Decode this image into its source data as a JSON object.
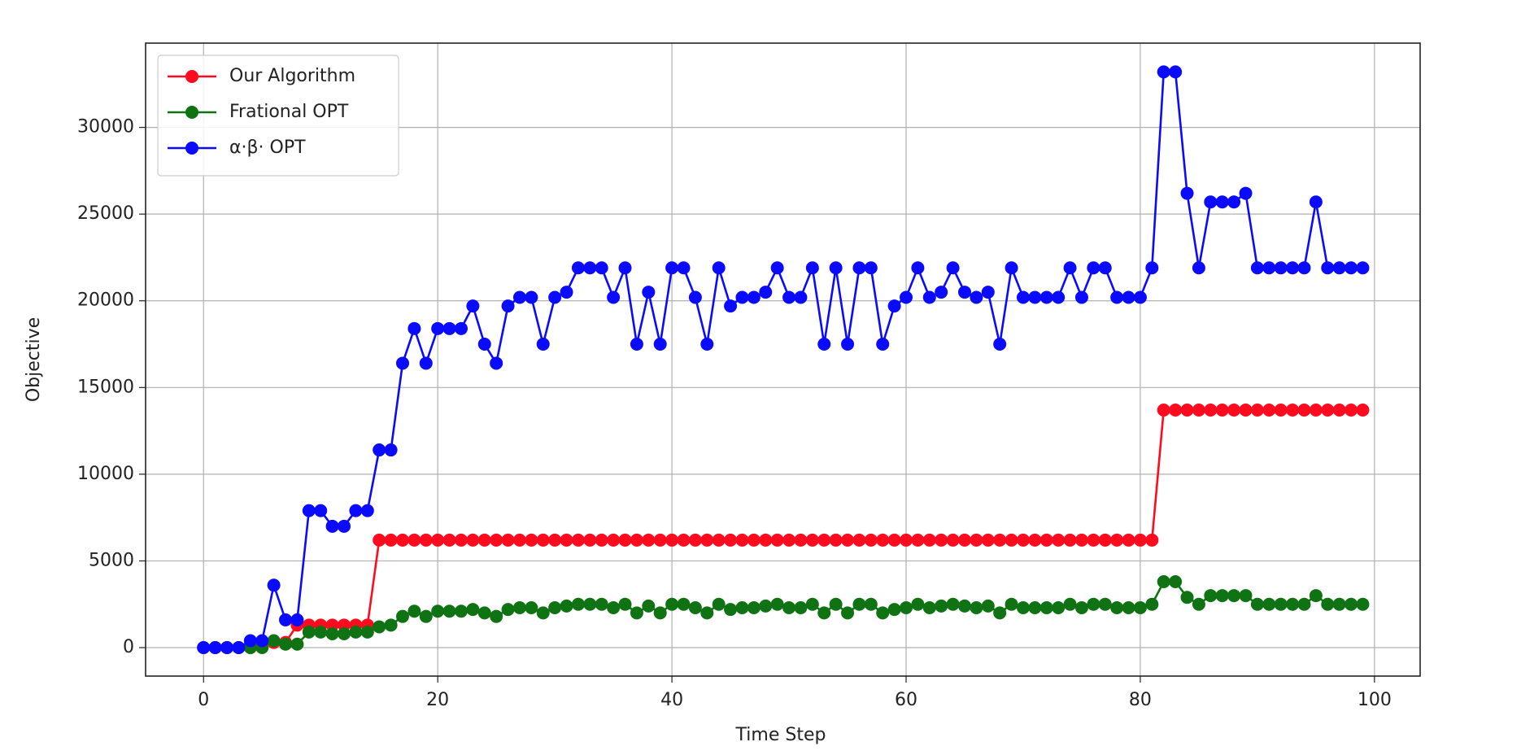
{
  "chart_data": {
    "type": "line",
    "xlabel": "Time Step",
    "ylabel": "Objective",
    "x": [
      0,
      1,
      2,
      3,
      4,
      5,
      6,
      7,
      8,
      9,
      10,
      11,
      12,
      13,
      14,
      15,
      16,
      17,
      18,
      19,
      20,
      21,
      22,
      23,
      24,
      25,
      26,
      27,
      28,
      29,
      30,
      31,
      32,
      33,
      34,
      35,
      36,
      37,
      38,
      39,
      40,
      41,
      42,
      43,
      44,
      45,
      46,
      47,
      48,
      49,
      50,
      51,
      52,
      53,
      54,
      55,
      56,
      57,
      58,
      59,
      60,
      61,
      62,
      63,
      64,
      65,
      66,
      67,
      68,
      69,
      70,
      71,
      72,
      73,
      74,
      75,
      76,
      77,
      78,
      79,
      80,
      81,
      82,
      83,
      84,
      85,
      86,
      87,
      88,
      89,
      90,
      91,
      92,
      93,
      94,
      95,
      96,
      97,
      98,
      99
    ],
    "series": [
      {
        "name": "Our Algorithm",
        "color": "#ff0a1e",
        "values": [
          0,
          0,
          0,
          0,
          0,
          300,
          300,
          300,
          1300,
          1300,
          1300,
          1300,
          1300,
          1300,
          1300,
          6200,
          6200,
          6200,
          6200,
          6200,
          6200,
          6200,
          6200,
          6200,
          6200,
          6200,
          6200,
          6200,
          6200,
          6200,
          6200,
          6200,
          6200,
          6200,
          6200,
          6200,
          6200,
          6200,
          6200,
          6200,
          6200,
          6200,
          6200,
          6200,
          6200,
          6200,
          6200,
          6200,
          6200,
          6200,
          6200,
          6200,
          6200,
          6200,
          6200,
          6200,
          6200,
          6200,
          6200,
          6200,
          6200,
          6200,
          6200,
          6200,
          6200,
          6200,
          6200,
          6200,
          6200,
          6200,
          6200,
          6200,
          6200,
          6200,
          6200,
          6200,
          6200,
          6200,
          6200,
          6200,
          6200,
          6200,
          13700,
          13700,
          13700,
          13700,
          13700,
          13700,
          13700,
          13700,
          13700,
          13700,
          13700,
          13700,
          13700,
          13700,
          13700,
          13700,
          13700,
          13700
        ]
      },
      {
        "name": "Frational OPT",
        "color": "#0f7314",
        "values": [
          0,
          0,
          0,
          0,
          0,
          0,
          400,
          200,
          200,
          900,
          900,
          800,
          800,
          900,
          900,
          1200,
          1300,
          1800,
          2100,
          1800,
          2100,
          2100,
          2100,
          2200,
          2000,
          1800,
          2200,
          2300,
          2300,
          2000,
          2300,
          2400,
          2500,
          2500,
          2500,
          2300,
          2500,
          2000,
          2400,
          2000,
          2500,
          2500,
          2300,
          2000,
          2500,
          2200,
          2300,
          2300,
          2400,
          2500,
          2300,
          2300,
          2500,
          2000,
          2500,
          2000,
          2500,
          2500,
          2000,
          2200,
          2300,
          2500,
          2300,
          2400,
          2500,
          2400,
          2300,
          2400,
          2000,
          2500,
          2300,
          2300,
          2300,
          2300,
          2500,
          2300,
          2500,
          2500,
          2300,
          2300,
          2300,
          2500,
          3800,
          3800,
          2900,
          2500,
          3000,
          3000,
          3000,
          3000,
          2500,
          2500,
          2500,
          2500,
          2500,
          3000,
          2500,
          2500,
          2500,
          2500
        ]
      },
      {
        "name": "α·β· OPT",
        "color": "#0a0aff",
        "values": [
          0,
          0,
          0,
          0,
          400,
          400,
          3600,
          1600,
          1600,
          7900,
          7900,
          7000,
          7000,
          7900,
          7900,
          11400,
          11400,
          16400,
          18400,
          16400,
          18400,
          18400,
          18400,
          19700,
          17500,
          16400,
          19700,
          20200,
          20200,
          17500,
          20200,
          20500,
          21900,
          21900,
          21900,
          20200,
          21900,
          17500,
          20500,
          17500,
          21900,
          21900,
          20200,
          17500,
          21900,
          19700,
          20200,
          20200,
          20500,
          21900,
          20200,
          20200,
          21900,
          17500,
          21900,
          17500,
          21900,
          21900,
          17500,
          19700,
          20200,
          21900,
          20200,
          20500,
          21900,
          20500,
          20200,
          20500,
          17500,
          21900,
          20200,
          20200,
          20200,
          20200,
          21900,
          20200,
          21900,
          21900,
          20200,
          20200,
          20200,
          21900,
          33200,
          33200,
          26200,
          21900,
          25700,
          25700,
          25700,
          26200,
          21900,
          21900,
          21900,
          21900,
          21900,
          25700,
          21900,
          21900,
          21900,
          21900
        ]
      }
    ],
    "xlim": [
      -4.95,
      103.9
    ],
    "xticks": [
      0,
      20,
      40,
      60,
      80,
      100
    ],
    "ylim": [
      -1641,
      34860
    ],
    "yticks": [
      0,
      5000,
      10000,
      15000,
      20000,
      25000,
      30000
    ],
    "grid": true,
    "legend": "upper left"
  }
}
